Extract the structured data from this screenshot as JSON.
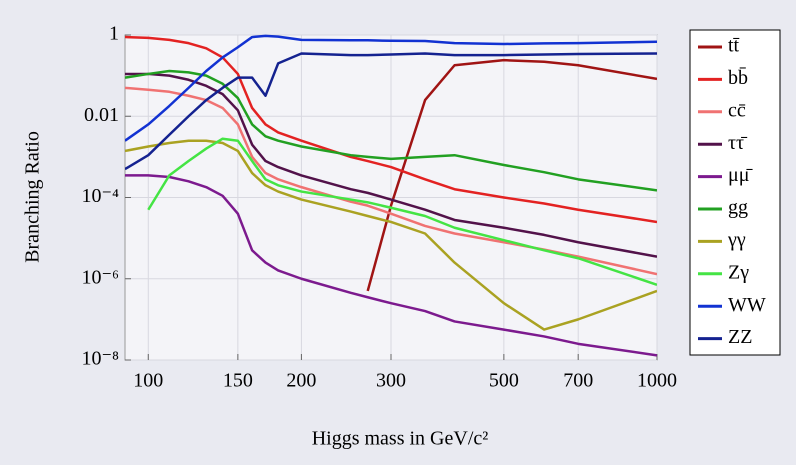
{
  "chart_data": {
    "type": "line",
    "xlabel": "Higgs mass in GeV/c²",
    "ylabel": "Branching Ratio",
    "xscale": "log",
    "yscale": "log",
    "xlim": [
      90,
      1000
    ],
    "ylim": [
      1e-08,
      1
    ],
    "xticks": [
      100,
      150,
      200,
      300,
      500,
      700,
      1000
    ],
    "yticks": [
      1,
      0.01,
      {
        "value": 0.0001,
        "label": "10⁻⁴"
      },
      {
        "value": 1e-06,
        "label": "10⁻⁶"
      },
      {
        "value": 1e-08,
        "label": "10⁻⁸"
      }
    ],
    "grid": true,
    "legend": "right",
    "x": [
      90,
      100,
      110,
      120,
      130,
      140,
      150,
      160,
      170,
      180,
      200,
      250,
      270,
      300,
      350,
      400,
      500,
      600,
      700,
      1000
    ],
    "series": [
      {
        "name": "tt̄",
        "color": "#a01414",
        "values": [
          null,
          null,
          null,
          null,
          null,
          null,
          null,
          null,
          null,
          null,
          null,
          null,
          5e-07,
          6.3e-05,
          0.025,
          0.18,
          0.24,
          0.22,
          0.18,
          0.083
        ]
      },
      {
        "name": "bb̄",
        "color": "#e32222",
        "values": [
          0.89,
          0.85,
          0.76,
          0.63,
          0.47,
          0.28,
          0.11,
          0.016,
          0.0063,
          0.004,
          0.0025,
          0.001,
          0.00079,
          0.00056,
          0.00028,
          0.00016,
          0.0001,
          7.1e-05,
          5e-05,
          2.5e-05
        ]
      },
      {
        "name": "cc̄",
        "color": "#f07272",
        "values": [
          0.05,
          0.045,
          0.04,
          0.032,
          0.025,
          0.016,
          0.0063,
          0.001,
          0.0004,
          0.00028,
          0.00018,
          7.9e-05,
          6.3e-05,
          4e-05,
          2e-05,
          1.3e-05,
          7.9e-06,
          5.2e-06,
          3.5e-06,
          1.3e-06
        ]
      },
      {
        "name": "ττ̄",
        "color": "#52124a",
        "values": [
          0.11,
          0.11,
          0.1,
          0.079,
          0.056,
          0.035,
          0.014,
          0.002,
          0.00079,
          0.00056,
          0.00035,
          0.00016,
          0.00013,
          8.9e-05,
          5e-05,
          2.8e-05,
          1.8e-05,
          1.2e-05,
          7.9e-06,
          3.5e-06
        ]
      },
      {
        "name": "μμ̄",
        "color": "#7c1a8e",
        "values": [
          0.00035,
          0.00035,
          0.00032,
          0.00025,
          0.00018,
          0.00011,
          4e-05,
          5e-06,
          2.5e-06,
          1.6e-06,
          1e-06,
          4.5e-07,
          3.5e-07,
          2.5e-07,
          1.6e-07,
          8.9e-08,
          5.6e-08,
          3.8e-08,
          2.5e-08,
          1.3e-08
        ]
      },
      {
        "name": "gg",
        "color": "#22a022",
        "values": [
          0.089,
          0.11,
          0.13,
          0.12,
          0.1,
          0.063,
          0.028,
          0.0063,
          0.0032,
          0.0025,
          0.0018,
          0.0011,
          0.001,
          0.00089,
          0.001,
          0.0011,
          0.00063,
          0.00042,
          0.00028,
          0.00015
        ]
      },
      {
        "name": "γγ",
        "color": "#aaa222",
        "values": [
          0.0014,
          0.0018,
          0.0022,
          0.0025,
          0.0025,
          0.0022,
          0.0014,
          0.0004,
          0.0002,
          0.00014,
          8.9e-05,
          4.5e-05,
          3.5e-05,
          2.5e-05,
          1.3e-05,
          2.5e-06,
          2.5e-07,
          5.6e-08,
          1e-07,
          5e-07
        ]
      },
      {
        "name": "Zγ",
        "color": "#44e444",
        "values": [
          null,
          5e-05,
          0.00035,
          0.00079,
          0.0016,
          0.0028,
          0.0025,
          0.00079,
          0.00028,
          0.0002,
          0.00014,
          8.9e-05,
          7.6e-05,
          5.6e-05,
          3.5e-05,
          1.8e-05,
          8.9e-06,
          5e-06,
          3.2e-06,
          7.1e-07
        ]
      },
      {
        "name": "WW",
        "color": "#1232d2",
        "values": [
          0.0025,
          0.0063,
          0.018,
          0.05,
          0.13,
          0.28,
          0.5,
          0.89,
          0.95,
          0.91,
          0.76,
          0.74,
          0.74,
          0.72,
          0.71,
          0.63,
          0.6,
          0.62,
          0.63,
          0.68
        ]
      },
      {
        "name": "ZZ",
        "color": "#142290",
        "values": [
          0.0005,
          0.0011,
          0.0035,
          0.01,
          0.025,
          0.05,
          0.089,
          0.089,
          0.032,
          0.2,
          0.35,
          0.32,
          0.32,
          0.33,
          0.35,
          0.32,
          0.32,
          0.33,
          0.34,
          0.35
        ]
      }
    ]
  }
}
